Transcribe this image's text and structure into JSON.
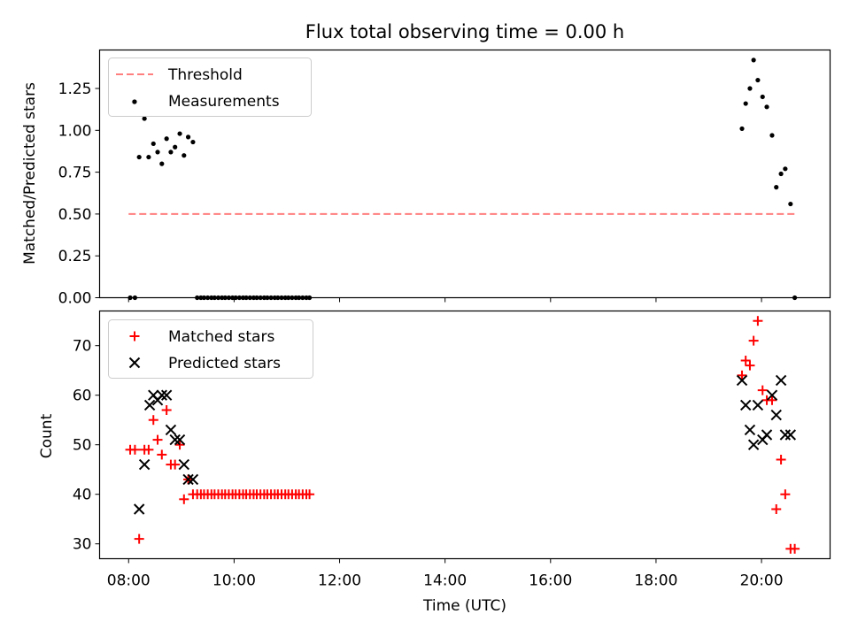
{
  "chart_data": [
    {
      "type": "scatter",
      "title": "Flux total observing time = 0.00 h",
      "xlabel": "",
      "ylabel": "Matched/Predicted stars",
      "xlim": [
        7.45,
        21.3
      ],
      "ylim": [
        0,
        1.48
      ],
      "yticks": [
        0.0,
        0.25,
        0.5,
        0.75,
        1.0,
        1.25
      ],
      "ytick_labels": [
        "0.00",
        "0.25",
        "0.50",
        "0.75",
        "1.00",
        "1.25"
      ],
      "legend_position": "top-left",
      "threshold": {
        "name": "Threshold",
        "color": "#ff7f7f",
        "y": 0.5,
        "x_range": [
          8.0,
          20.65
        ]
      },
      "series": [
        {
          "name": "Measurements",
          "color": "#000000",
          "marker": "dot",
          "points": [
            [
              8.03,
              0.0
            ],
            [
              8.1,
              1.17
            ],
            [
              8.12,
              0.0
            ],
            [
              8.2,
              0.84
            ],
            [
              8.3,
              1.07
            ],
            [
              8.38,
              0.84
            ],
            [
              8.47,
              0.92
            ],
            [
              8.55,
              0.87
            ],
            [
              8.63,
              0.8
            ],
            [
              8.72,
              0.95
            ],
            [
              8.8,
              0.87
            ],
            [
              8.88,
              0.9
            ],
            [
              8.97,
              0.98
            ],
            [
              9.05,
              0.85
            ],
            [
              9.13,
              0.96
            ],
            [
              9.22,
              0.93
            ],
            [
              9.3,
              0.0
            ],
            [
              9.37,
              0.0
            ],
            [
              9.43,
              0.0
            ],
            [
              9.5,
              0.0
            ],
            [
              9.57,
              0.0
            ],
            [
              9.63,
              0.0
            ],
            [
              9.7,
              0.0
            ],
            [
              9.77,
              0.0
            ],
            [
              9.83,
              0.0
            ],
            [
              9.9,
              0.0
            ],
            [
              9.97,
              0.0
            ],
            [
              10.03,
              0.0
            ],
            [
              10.1,
              0.0
            ],
            [
              10.17,
              0.0
            ],
            [
              10.23,
              0.0
            ],
            [
              10.3,
              0.0
            ],
            [
              10.37,
              0.0
            ],
            [
              10.43,
              0.0
            ],
            [
              10.5,
              0.0
            ],
            [
              10.57,
              0.0
            ],
            [
              10.63,
              0.0
            ],
            [
              10.7,
              0.0
            ],
            [
              10.77,
              0.0
            ],
            [
              10.83,
              0.0
            ],
            [
              10.9,
              0.0
            ],
            [
              10.97,
              0.0
            ],
            [
              11.03,
              0.0
            ],
            [
              11.1,
              0.0
            ],
            [
              11.17,
              0.0
            ],
            [
              11.23,
              0.0
            ],
            [
              11.3,
              0.0
            ],
            [
              11.37,
              0.0
            ],
            [
              11.43,
              0.0
            ],
            [
              19.63,
              1.01
            ],
            [
              19.7,
              1.16
            ],
            [
              19.78,
              1.25
            ],
            [
              19.85,
              1.42
            ],
            [
              19.93,
              1.3
            ],
            [
              20.02,
              1.2
            ],
            [
              20.1,
              1.14
            ],
            [
              20.2,
              0.97
            ],
            [
              20.28,
              0.66
            ],
            [
              20.37,
              0.74
            ],
            [
              20.45,
              0.77
            ],
            [
              20.55,
              0.56
            ],
            [
              20.63,
              0.0
            ]
          ]
        }
      ]
    },
    {
      "type": "scatter",
      "title": "",
      "xlabel": "Time (UTC)",
      "ylabel": "Count",
      "xlim": [
        7.45,
        21.3
      ],
      "ylim": [
        27,
        77
      ],
      "yticks": [
        30,
        40,
        50,
        60,
        70
      ],
      "ytick_labels": [
        "30",
        "40",
        "50",
        "60",
        "70"
      ],
      "xticks": [
        8,
        10,
        12,
        14,
        16,
        18,
        20
      ],
      "xtick_labels": [
        "08:00",
        "10:00",
        "12:00",
        "14:00",
        "16:00",
        "18:00",
        "20:00"
      ],
      "legend_position": "top-left",
      "series": [
        {
          "name": "Matched stars",
          "color": "#ff0000",
          "marker": "plus",
          "points": [
            [
              8.03,
              49
            ],
            [
              8.12,
              49
            ],
            [
              8.2,
              31
            ],
            [
              8.3,
              49
            ],
            [
              8.38,
              49
            ],
            [
              8.47,
              55
            ],
            [
              8.55,
              51
            ],
            [
              8.63,
              48
            ],
            [
              8.72,
              57
            ],
            [
              8.8,
              46
            ],
            [
              8.88,
              46
            ],
            [
              8.97,
              50
            ],
            [
              9.05,
              39
            ],
            [
              9.13,
              43
            ],
            [
              9.22,
              40
            ],
            [
              9.3,
              40
            ],
            [
              9.37,
              40
            ],
            [
              9.43,
              40
            ],
            [
              9.5,
              40
            ],
            [
              9.57,
              40
            ],
            [
              9.63,
              40
            ],
            [
              9.7,
              40
            ],
            [
              9.77,
              40
            ],
            [
              9.83,
              40
            ],
            [
              9.9,
              40
            ],
            [
              9.97,
              40
            ],
            [
              10.03,
              40
            ],
            [
              10.1,
              40
            ],
            [
              10.17,
              40
            ],
            [
              10.23,
              40
            ],
            [
              10.3,
              40
            ],
            [
              10.37,
              40
            ],
            [
              10.43,
              40
            ],
            [
              10.5,
              40
            ],
            [
              10.57,
              40
            ],
            [
              10.63,
              40
            ],
            [
              10.7,
              40
            ],
            [
              10.77,
              40
            ],
            [
              10.83,
              40
            ],
            [
              10.9,
              40
            ],
            [
              10.97,
              40
            ],
            [
              11.03,
              40
            ],
            [
              11.1,
              40
            ],
            [
              11.17,
              40
            ],
            [
              11.23,
              40
            ],
            [
              11.3,
              40
            ],
            [
              11.37,
              40
            ],
            [
              11.43,
              40
            ],
            [
              19.63,
              64
            ],
            [
              19.7,
              67
            ],
            [
              19.78,
              66
            ],
            [
              19.85,
              71
            ],
            [
              19.93,
              75
            ],
            [
              20.02,
              61
            ],
            [
              20.1,
              59
            ],
            [
              20.2,
              59
            ],
            [
              20.28,
              37
            ],
            [
              20.37,
              47
            ],
            [
              20.45,
              40
            ],
            [
              20.55,
              29
            ],
            [
              20.63,
              29
            ]
          ]
        },
        {
          "name": "Predicted stars",
          "color": "#000000",
          "marker": "x",
          "points": [
            [
              8.2,
              37
            ],
            [
              8.3,
              46
            ],
            [
              8.4,
              58
            ],
            [
              8.47,
              60
            ],
            [
              8.55,
              59
            ],
            [
              8.63,
              60
            ],
            [
              8.72,
              60
            ],
            [
              8.8,
              53
            ],
            [
              8.88,
              51
            ],
            [
              8.97,
              51
            ],
            [
              9.05,
              46
            ],
            [
              9.13,
              43
            ],
            [
              9.22,
              43
            ],
            [
              19.63,
              63
            ],
            [
              19.7,
              58
            ],
            [
              19.78,
              53
            ],
            [
              19.85,
              50
            ],
            [
              19.93,
              58
            ],
            [
              20.02,
              51
            ],
            [
              20.1,
              52
            ],
            [
              20.2,
              60
            ],
            [
              20.28,
              56
            ],
            [
              20.37,
              63
            ],
            [
              20.45,
              52
            ],
            [
              20.55,
              52
            ]
          ]
        }
      ]
    }
  ]
}
